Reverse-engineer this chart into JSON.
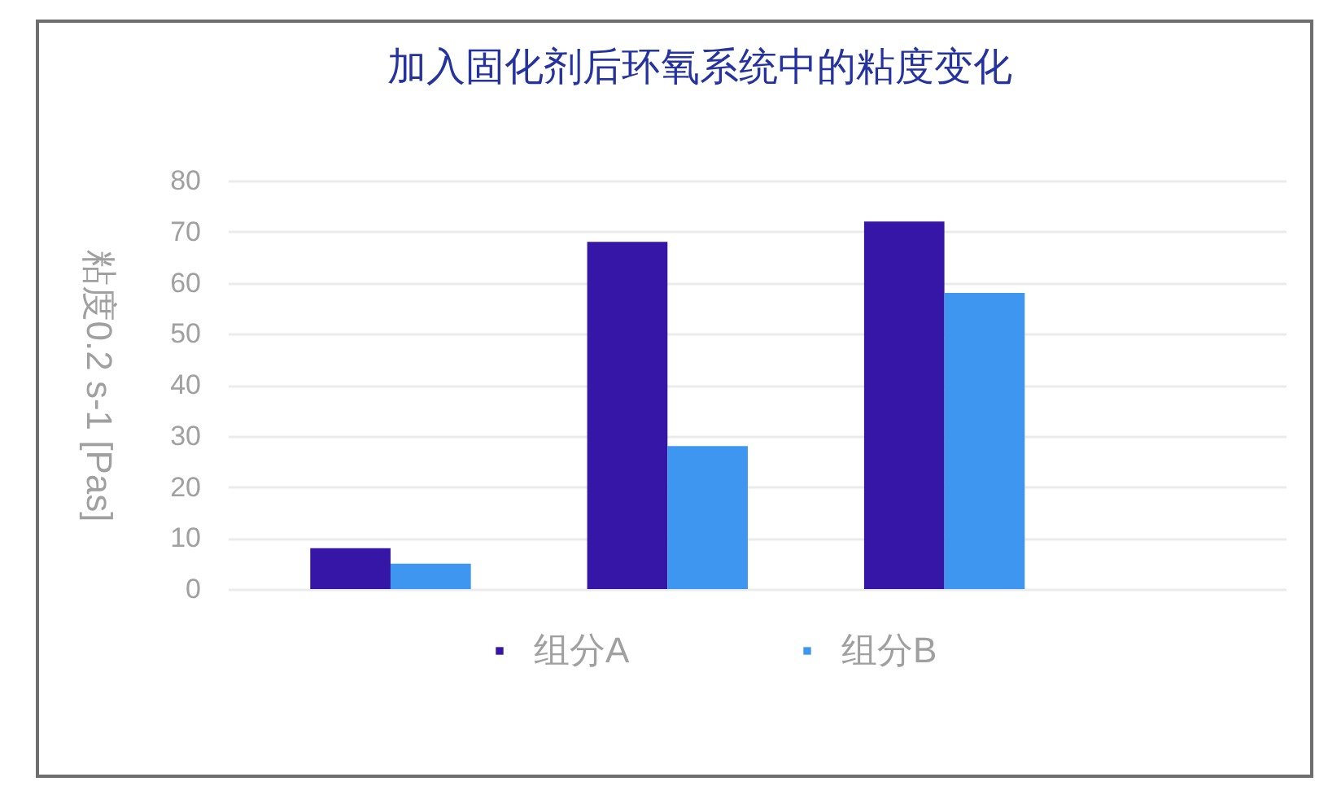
{
  "chart_data": {
    "type": "bar",
    "title": "加入固化剂后环氧系统中的粘度变化",
    "ylabel": "粘度0.2 s-1 [Pas]",
    "categories": [
      null,
      null,
      null
    ],
    "series": [
      {
        "name": "组分A",
        "color": "#3516a6",
        "values": [
          8,
          68,
          72
        ]
      },
      {
        "name": "组分B",
        "color": "#3e96f0",
        "values": [
          5,
          28,
          58
        ]
      }
    ],
    "ylim": [
      0,
      80
    ],
    "yticks": [
      0,
      10,
      20,
      30,
      40,
      50,
      60,
      70,
      80
    ],
    "grid": "y",
    "legend": "bottom",
    "tick_labels": "y"
  }
}
